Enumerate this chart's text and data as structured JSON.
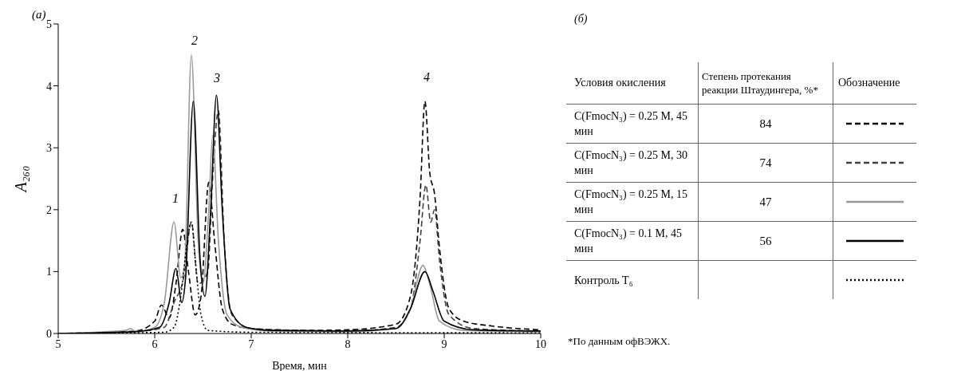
{
  "chart_data": [
    {
      "type": "line",
      "title": "(а)",
      "xlabel": "Время, мин",
      "ylabel": "A₂₆₀",
      "xlim": [
        5,
        10
      ],
      "xticks": [
        5,
        6,
        7,
        8,
        9,
        10
      ],
      "ylim": [
        0,
        5
      ],
      "yticks": [
        0,
        1,
        2,
        3,
        4,
        5
      ],
      "grid": false,
      "legend": false,
      "marker": "none",
      "annotations": [
        "1",
        "2",
        "3",
        "4"
      ],
      "series": [
        {
          "color": "#000000",
          "line_style": "dashed",
          "x": [
            5,
            5.5,
            5.8,
            6.0,
            6.07,
            6.15,
            6.22,
            6.29,
            6.35,
            6.42,
            6.48,
            6.56,
            6.62,
            6.7,
            6.8,
            7.0,
            7.5,
            8.0,
            8.5,
            8.65,
            8.75,
            8.8,
            8.85,
            8.9,
            8.95,
            9.05,
            9.2,
            9.5,
            10
          ],
          "values": [
            0,
            0.02,
            0.04,
            0.2,
            0.46,
            0.25,
            0.8,
            1.68,
            1.0,
            0.3,
            0.6,
            2.44,
            1.5,
            0.4,
            0.15,
            0.08,
            0.05,
            0.06,
            0.15,
            0.6,
            2.2,
            3.75,
            2.6,
            2.25,
            1.4,
            0.4,
            0.2,
            0.12,
            0.06
          ]
        },
        {
          "color": "#404040",
          "line_style": "dashed",
          "x": [
            5,
            5.8,
            6.1,
            6.2,
            6.3,
            6.38,
            6.45,
            6.55,
            6.6,
            6.66,
            6.72,
            6.8,
            7,
            8,
            8.5,
            8.65,
            8.75,
            8.81,
            8.86,
            8.9,
            8.95,
            9.05,
            9.3,
            10
          ],
          "values": [
            0,
            0.03,
            0.1,
            0.5,
            0.9,
            1.8,
            0.8,
            1.0,
            2.5,
            3.6,
            1.5,
            0.3,
            0.08,
            0.04,
            0.1,
            0.4,
            1.5,
            2.4,
            1.8,
            2.0,
            1.2,
            0.3,
            0.08,
            0.04
          ]
        },
        {
          "color": "#999999",
          "line_style": "solid",
          "x": [
            5,
            5.7,
            5.75,
            5.8,
            6.0,
            6.1,
            6.2,
            6.27,
            6.31,
            6.38,
            6.45,
            6.5,
            6.56,
            6.6,
            6.66,
            6.75,
            6.9,
            7.2,
            8,
            8.5,
            8.65,
            8.78,
            8.85,
            8.95,
            9.2,
            10
          ],
          "values": [
            0,
            0.05,
            0.08,
            0.03,
            0.1,
            0.5,
            1.8,
            0.9,
            1.1,
            4.5,
            1.5,
            0.8,
            2.0,
            3.2,
            1.5,
            0.3,
            0.1,
            0.04,
            0.03,
            0.08,
            0.4,
            1.1,
            0.8,
            0.2,
            0.05,
            0.03
          ]
        },
        {
          "color": "#000000",
          "line_style": "solid",
          "x": [
            5,
            5.8,
            6.05,
            6.15,
            6.22,
            6.28,
            6.32,
            6.4,
            6.47,
            6.52,
            6.58,
            6.64,
            6.7,
            6.78,
            6.95,
            7.2,
            8,
            8.5,
            8.65,
            8.8,
            8.88,
            9.0,
            9.3,
            10
          ],
          "values": [
            0,
            0.03,
            0.1,
            0.5,
            1.05,
            0.5,
            0.9,
            3.75,
            1.2,
            0.6,
            2.0,
            3.85,
            2.0,
            0.4,
            0.1,
            0.05,
            0.04,
            0.08,
            0.4,
            1.0,
            0.7,
            0.2,
            0.06,
            0.04
          ]
        },
        {
          "color": "#000000",
          "line_style": "dotted",
          "x": [
            5,
            6.1,
            6.2,
            6.27,
            6.33,
            6.38,
            6.42,
            6.48,
            6.55,
            7,
            10
          ],
          "values": [
            0,
            0.02,
            0.1,
            0.6,
            1.4,
            1.8,
            1.2,
            0.3,
            0.05,
            0.02,
            0.01
          ]
        }
      ]
    },
    {
      "type": "other",
      "title": "(б)",
      "data_labels": true,
      "categories": [
        "C(FmocN₃) = 0.25 M, 45 мин",
        "C(FmocN₃) = 0.25 M, 30 мин",
        "C(FmocN₃) = 0.25 M, 15 мин",
        "C(FmocN₃) = 0.1 M, 45 мин",
        "Контроль T₆"
      ],
      "values": [
        84,
        74,
        47,
        56,
        null
      ],
      "annotations": [
        "Условия окисления",
        "Степень протекания реакции Штаудингера, %*",
        "Обозначение",
        "*По данным офВЭЖХ."
      ]
    }
  ]
}
